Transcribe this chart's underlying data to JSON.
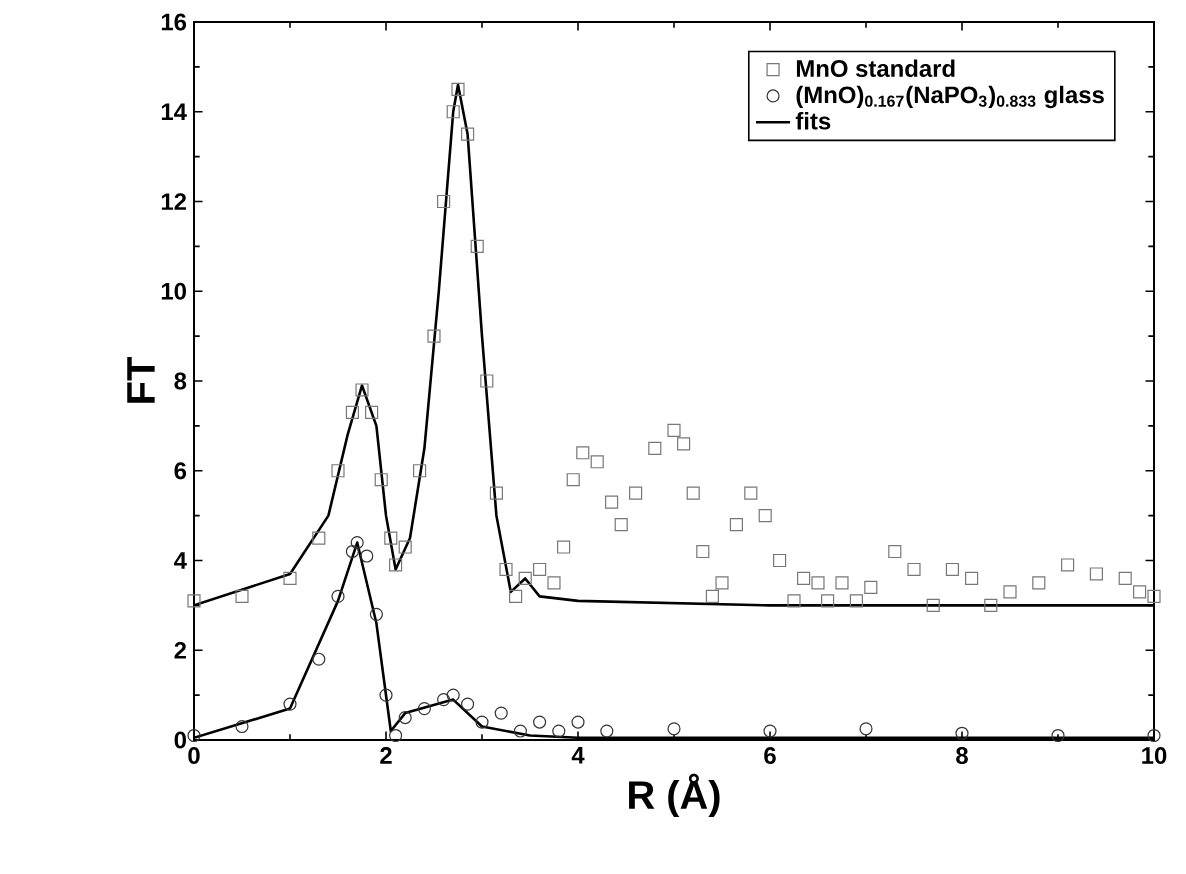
{
  "chart_data": {
    "type": "scatter",
    "xlabel": "R (Å)",
    "ylabel": "FT",
    "xlim": [
      0,
      10
    ],
    "ylim": [
      0,
      16
    ],
    "xticks": [
      0,
      2,
      4,
      6,
      8,
      10
    ],
    "yticks": [
      0,
      2,
      4,
      6,
      8,
      10,
      12,
      14,
      16
    ],
    "legend": "top right",
    "grid": false,
    "series": [
      {
        "name": "MnO standard",
        "marker": "square",
        "color": "#777777",
        "x": [
          0,
          0.5,
          1.0,
          1.3,
          1.5,
          1.65,
          1.75,
          1.85,
          1.95,
          2.05,
          2.1,
          2.2,
          2.35,
          2.5,
          2.6,
          2.7,
          2.75,
          2.85,
          2.95,
          3.05,
          3.15,
          3.25,
          3.35,
          3.45,
          3.6,
          3.75,
          3.85,
          3.95,
          4.05,
          4.2,
          4.35,
          4.45,
          4.6,
          4.8,
          5.0,
          5.1,
          5.2,
          5.3,
          5.4,
          5.5,
          5.65,
          5.8,
          5.95,
          6.1,
          6.25,
          6.35,
          6.5,
          6.6,
          6.75,
          6.9,
          7.05,
          7.3,
          7.5,
          7.7,
          7.9,
          8.1,
          8.3,
          8.5,
          8.8,
          9.1,
          9.4,
          9.7,
          9.85,
          10.0
        ],
        "values": [
          3.1,
          3.2,
          3.6,
          4.5,
          6.0,
          7.3,
          7.8,
          7.3,
          5.8,
          4.5,
          3.9,
          4.3,
          6.0,
          9.0,
          12.0,
          14.0,
          14.5,
          13.5,
          11.0,
          8.0,
          5.5,
          3.8,
          3.2,
          3.6,
          3.8,
          3.5,
          4.3,
          5.8,
          6.4,
          6.2,
          5.3,
          4.8,
          5.5,
          6.5,
          6.9,
          6.6,
          5.5,
          4.2,
          3.2,
          3.5,
          4.8,
          5.5,
          5.0,
          4.0,
          3.1,
          3.6,
          3.5,
          3.1,
          3.5,
          3.1,
          3.4,
          4.2,
          3.8,
          3.0,
          3.8,
          3.6,
          3.0,
          3.3,
          3.5,
          3.9,
          3.7,
          3.6,
          3.3,
          3.2
        ]
      },
      {
        "name": "(MnO)$_{0.167}$(NaPO$_{3}$)$_{0.833}$ glass",
        "marker": "circle",
        "color": "#333333",
        "x": [
          0,
          0.5,
          1.0,
          1.3,
          1.5,
          1.65,
          1.7,
          1.8,
          1.9,
          2.0,
          2.1,
          2.2,
          2.4,
          2.6,
          2.7,
          2.85,
          3.0,
          3.2,
          3.4,
          3.6,
          3.8,
          4.0,
          4.3,
          5.0,
          6.0,
          7.0,
          8.0,
          9.0,
          10.0
        ],
        "values": [
          0.1,
          0.3,
          0.8,
          1.8,
          3.2,
          4.2,
          4.4,
          4.1,
          2.8,
          1.0,
          0.1,
          0.5,
          0.7,
          0.9,
          1.0,
          0.8,
          0.4,
          0.6,
          0.2,
          0.4,
          0.2,
          0.4,
          0.2,
          0.25,
          0.2,
          0.25,
          0.15,
          0.1,
          0.1
        ]
      },
      {
        "name": "fits",
        "type": "line",
        "marker": "none",
        "color": "#000000",
        "x": [
          0,
          1.0,
          1.4,
          1.6,
          1.75,
          1.9,
          2.0,
          2.1,
          2.25,
          2.4,
          2.55,
          2.7,
          2.75,
          2.85,
          3.0,
          3.15,
          3.3,
          3.45,
          3.6,
          4.0,
          6.0,
          10.0
        ],
        "values": [
          3.0,
          3.7,
          5.0,
          6.8,
          7.9,
          7.0,
          5.0,
          3.8,
          4.5,
          6.5,
          10.0,
          14.0,
          14.6,
          13.5,
          9.0,
          5.0,
          3.3,
          3.6,
          3.2,
          3.1,
          3.0,
          3.0
        ]
      },
      {
        "type": "line",
        "marker": "none",
        "color": "#000000",
        "x": [
          0,
          1.0,
          1.5,
          1.7,
          1.9,
          2.05,
          2.2,
          2.7,
          3.0,
          3.5,
          4.0,
          10.0
        ],
        "values": [
          0.05,
          0.7,
          3.1,
          4.4,
          2.6,
          0.2,
          0.6,
          0.9,
          0.3,
          0.1,
          0.05,
          0.05
        ]
      }
    ]
  }
}
